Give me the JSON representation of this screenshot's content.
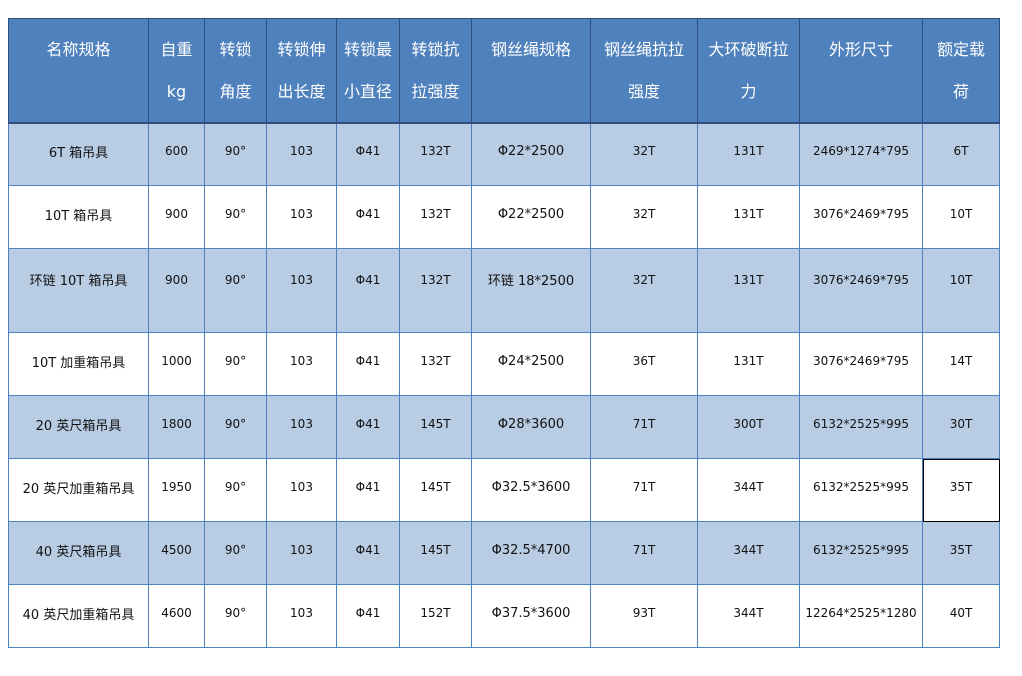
{
  "colors": {
    "header_bg": "#4f81bd",
    "band_bg": "#b8cce4",
    "border": "#4f81bd"
  },
  "headers": [
    [
      "名称规格",
      ""
    ],
    [
      "自重",
      "kg"
    ],
    [
      "转锁",
      "角度"
    ],
    [
      "转锁伸",
      "出长度"
    ],
    [
      "转锁最",
      "小直径"
    ],
    [
      "转锁抗",
      "拉强度"
    ],
    [
      "钢丝绳规格",
      ""
    ],
    [
      "钢丝绳抗拉",
      "强度"
    ],
    [
      "大环破断拉",
      "力"
    ],
    [
      "外形尺寸",
      ""
    ],
    [
      "额定载",
      "荷"
    ]
  ],
  "rows": [
    [
      "6T 箱吊具",
      "600",
      "90°",
      "103",
      "Φ41",
      "132T",
      "Φ22*2500",
      "32T",
      "131T",
      "2469*1274*795",
      "6T"
    ],
    [
      "10T 箱吊具",
      "900",
      "90°",
      "103",
      "Φ41",
      "132T",
      "Φ22*2500",
      "32T",
      "131T",
      "3076*2469*795",
      "10T"
    ],
    [
      "环链 10T 箱吊具",
      "900",
      "90°",
      "103",
      "Φ41",
      "132T",
      "环链 18*2500",
      "32T",
      "131T",
      "3076*2469*795",
      "10T"
    ],
    [
      "10T 加重箱吊具",
      "1000",
      "90°",
      "103",
      "Φ41",
      "132T",
      "Φ24*2500",
      "36T",
      "131T",
      "3076*2469*795",
      "14T"
    ],
    [
      "20 英尺箱吊具",
      "1800",
      "90°",
      "103",
      "Φ41",
      "145T",
      "Φ28*3600",
      "71T",
      "300T",
      "6132*2525*995",
      "30T"
    ],
    [
      "20 英尺加重箱吊具",
      "1950",
      "90°",
      "103",
      "Φ41",
      "145T",
      "Φ32.5*3600",
      "71T",
      "344T",
      "6132*2525*995",
      "35T"
    ],
    [
      "40 英尺箱吊具",
      "4500",
      "90°",
      "103",
      "Φ41",
      "145T",
      "Φ32.5*4700",
      "71T",
      "344T",
      "6132*2525*995",
      "35T"
    ],
    [
      "40 英尺加重箱吊具",
      "4600",
      "90°",
      "103",
      "Φ41",
      "152T",
      "Φ37.5*3600",
      "93T",
      "344T",
      "12264*2525*1280",
      "40T"
    ]
  ],
  "selected_cell": {
    "row": 5,
    "col": 10
  }
}
